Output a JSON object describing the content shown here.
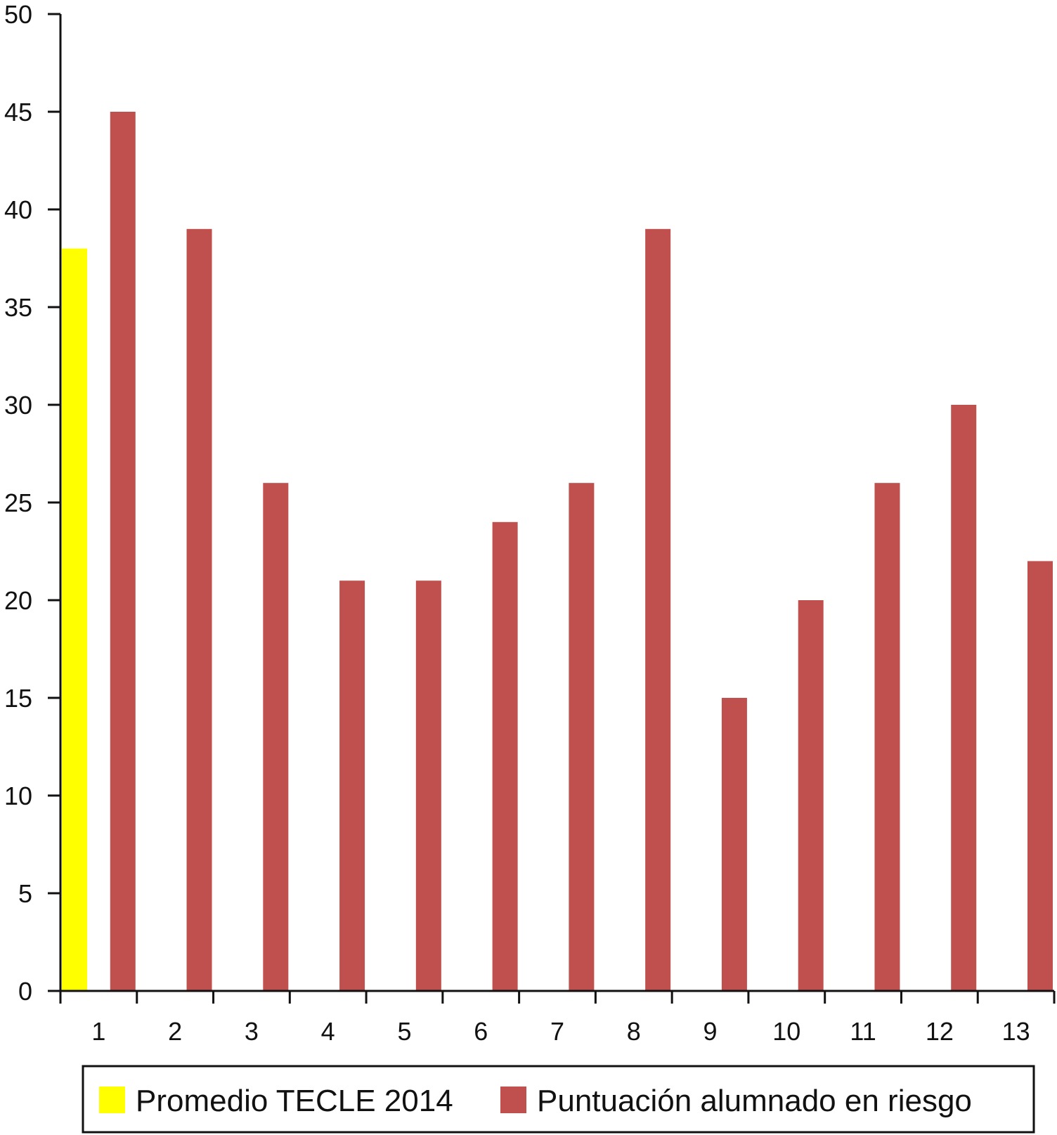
{
  "chart_data": {
    "type": "bar",
    "categories": [
      "1",
      "2",
      "3",
      "4",
      "5",
      "6",
      "7",
      "8",
      "9",
      "10",
      "11",
      "12",
      "13"
    ],
    "series": [
      {
        "name": "Promedio TECLE 2014",
        "color": "#ffff00",
        "values": [
          38,
          null,
          null,
          null,
          null,
          null,
          null,
          null,
          null,
          null,
          null,
          null,
          null
        ]
      },
      {
        "name": "Puntuación alumnado en riesgo",
        "color": "#c0504d",
        "values": [
          45,
          39,
          26,
          21,
          21,
          24,
          26,
          39,
          15,
          20,
          26,
          30,
          22
        ]
      }
    ],
    "y_ticks": [
      "0",
      "5",
      "10",
      "15",
      "20",
      "25",
      "30",
      "35",
      "40",
      "45",
      "50"
    ],
    "ylim": [
      0,
      50
    ],
    "grid": false,
    "legend_position": "bottom"
  }
}
